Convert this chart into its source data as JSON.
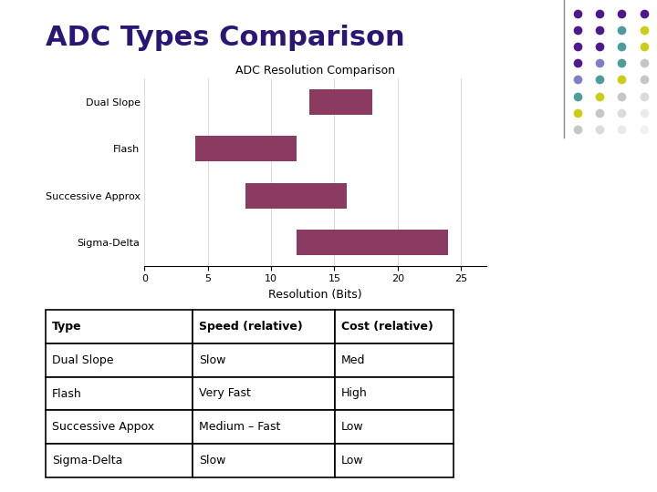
{
  "title": "ADC Types Comparison",
  "chart_title": "ADC Resolution Comparison",
  "bar_color": "#8B3A62",
  "bar_categories": [
    "Dual Slope",
    "Flash",
    "Successive Approx",
    "Sigma-Delta"
  ],
  "bar_starts": [
    13,
    4,
    8,
    12
  ],
  "bar_ends": [
    18,
    12,
    16,
    24
  ],
  "xlim": [
    0,
    27
  ],
  "xticks": [
    0,
    5,
    10,
    15,
    20,
    25
  ],
  "xlabel": "Resolution (Bits)",
  "bg_color": "#FFFFFF",
  "table_headers": [
    "Type",
    "Speed (relative)",
    "Cost (relative)"
  ],
  "table_rows": [
    [
      "Dual Slope",
      "Slow",
      "Med"
    ],
    [
      "Flash",
      "Very Fast",
      "High"
    ],
    [
      "Successive Appox",
      "Medium – Fast",
      "Low"
    ],
    [
      "Sigma-Delta",
      "Slow",
      "Low"
    ]
  ],
  "title_color": "#2B1675",
  "title_fontsize": 22,
  "chart_title_fontsize": 9,
  "axis_label_fontsize": 9,
  "tick_fontsize": 8,
  "table_fontsize": 9,
  "dot_grid": [
    [
      "#3a0080",
      "#3a0080",
      "#3a0080",
      "#3a0080"
    ],
    [
      "#3a0080",
      "#3a0080",
      "#3a9090",
      "#c8c800"
    ],
    [
      "#3a0080",
      "#3a0080",
      "#3a9090",
      "#c8c800"
    ],
    [
      "#3a0080",
      "#7070c0",
      "#3a9090",
      "#c0c0c0"
    ],
    [
      "#7070c0",
      "#3a9090",
      "#c8c800",
      "#c0c0c0"
    ],
    [
      "#3a9090",
      "#c8c800",
      "#c0c0c0",
      "#d8d8d8"
    ],
    [
      "#c8c800",
      "#c0c0c0",
      "#d8d8d8",
      "#e8e8e8"
    ],
    [
      "#c0c0c0",
      "#d8d8d8",
      "#e8e8e8",
      "#f0f0f0"
    ]
  ],
  "line_color": "#888888"
}
